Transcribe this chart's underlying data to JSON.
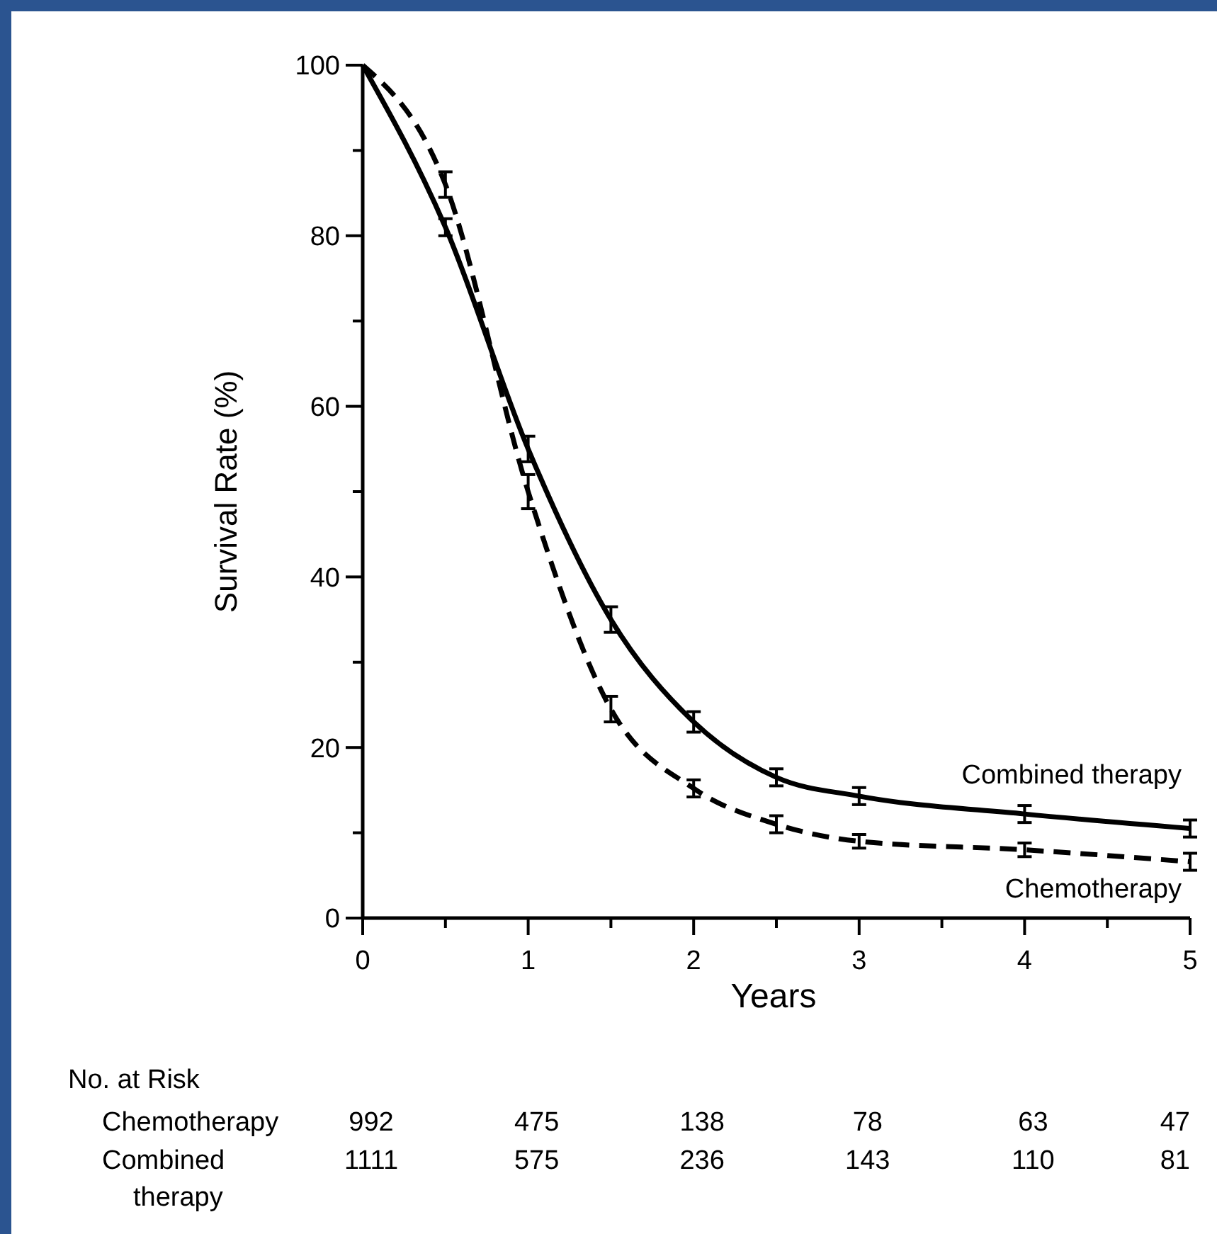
{
  "chart_data": {
    "type": "line",
    "xlabel": "Years",
    "ylabel": "Survival Rate (%)",
    "x": [
      0,
      0.5,
      1,
      1.5,
      2,
      2.5,
      3,
      4,
      5
    ],
    "series": [
      {
        "name": "Combined therapy",
        "color": "#000000",
        "line_style": "solid",
        "values": [
          100,
          81,
          55,
          35,
          23,
          16.5,
          14.3,
          12.2,
          10.5
        ],
        "errors": [
          null,
          1,
          1.5,
          1.5,
          1.2,
          1,
          1,
          1,
          1
        ]
      },
      {
        "name": "Chemotherapy",
        "color": "#000000",
        "line_style": "dashed",
        "values": [
          100,
          86,
          50,
          24.5,
          15.2,
          11,
          9,
          8,
          6.6
        ],
        "errors": [
          null,
          1.5,
          2,
          1.5,
          1,
          1,
          0.8,
          0.8,
          1
        ]
      }
    ],
    "xlim": [
      0,
      5
    ],
    "ylim": [
      0,
      100
    ],
    "xticks": [
      0,
      {
        "value": 0.5,
        "label": null
      },
      1,
      {
        "value": 1.5,
        "label": null
      },
      2,
      {
        "value": 2.5,
        "label": null
      },
      3,
      {
        "value": 3.5,
        "label": null
      },
      4,
      {
        "value": 4.5,
        "label": null
      },
      5
    ],
    "yticks": [
      0,
      {
        "value": 10,
        "label": null
      },
      20,
      {
        "value": 30,
        "label": null
      },
      40,
      {
        "value": 50,
        "label": null
      },
      60,
      {
        "value": 70,
        "label": null
      },
      80,
      {
        "value": 90,
        "label": null
      },
      100
    ],
    "grid": false,
    "annotations": [
      "No. at Risk",
      "Chemotherapy",
      "992",
      "475",
      "138",
      "78",
      "63",
      "47",
      "Combined therapy",
      "1111",
      "575",
      "236",
      "143",
      "110",
      "81"
    ]
  }
}
